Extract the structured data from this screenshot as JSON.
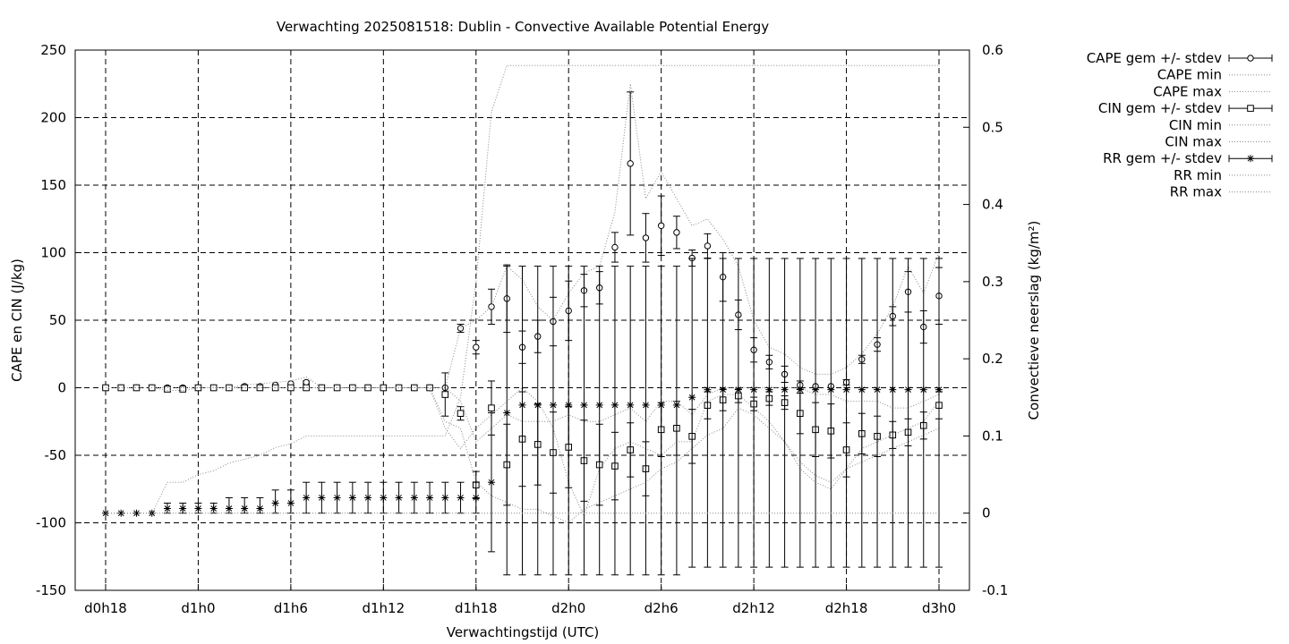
{
  "chart_data": {
    "type": "line",
    "title": "Verwachting 2025081518: Dublin - Convective Available Potential Energy",
    "xlabel": "Verwachtingstijd (UTC)",
    "ylabel": "CAPE en CIN (J/kg)",
    "y2label": "Convectieve neerslag (kg/m²)",
    "xlim": [
      0,
      54
    ],
    "ylim": [
      -150,
      250
    ],
    "y2lim": [
      -0.1,
      0.6
    ],
    "grid": true,
    "legend_position": "top-right outside",
    "xticks": [
      {
        "x": 0,
        "label": "d0h18"
      },
      {
        "x": 6,
        "label": "d1h0"
      },
      {
        "x": 12,
        "label": "d1h6"
      },
      {
        "x": 18,
        "label": "d1h12"
      },
      {
        "x": 24,
        "label": "d1h18"
      },
      {
        "x": 30,
        "label": "d2h0"
      },
      {
        "x": 36,
        "label": "d2h6"
      },
      {
        "x": 42,
        "label": "d2h12"
      },
      {
        "x": 48,
        "label": "d2h18"
      },
      {
        "x": 54,
        "label": "d3h0"
      }
    ],
    "yticks": [
      -150,
      -100,
      -50,
      0,
      50,
      100,
      150,
      200,
      250
    ],
    "y2ticks": [
      -0.1,
      0,
      0.1,
      0.2,
      0.3,
      0.4,
      0.5,
      0.6
    ],
    "x": [
      0,
      1,
      2,
      3,
      4,
      5,
      6,
      7,
      8,
      9,
      10,
      11,
      12,
      13,
      14,
      15,
      16,
      17,
      18,
      19,
      20,
      21,
      22,
      23,
      24,
      25,
      26,
      27,
      28,
      29,
      30,
      31,
      32,
      33,
      34,
      35,
      36,
      37,
      38,
      39,
      40,
      41,
      42,
      43,
      44,
      45,
      46,
      47,
      48,
      49,
      50,
      51,
      52,
      53,
      54
    ],
    "series": [
      {
        "name": "CAPE gem +/- stdev",
        "axis": "y1",
        "marker": "circle",
        "mean": [
          0,
          0,
          0,
          0,
          0,
          0,
          0,
          0,
          0,
          1,
          1,
          2,
          3,
          4,
          0,
          0,
          0,
          0,
          0,
          0,
          0,
          0,
          0,
          44,
          30,
          60,
          66,
          30,
          38,
          49,
          57,
          72,
          74,
          104,
          166,
          111,
          120,
          115,
          96,
          105,
          82,
          54,
          28,
          19,
          10,
          2,
          1,
          1,
          4,
          21,
          32,
          53,
          71,
          45,
          68
        ],
        "stdev": [
          0,
          0,
          0,
          0,
          0,
          0,
          0,
          0,
          0,
          0,
          0,
          0,
          0,
          1,
          0,
          0,
          0,
          0,
          0,
          0,
          0,
          0,
          0,
          3,
          5,
          13,
          25,
          12,
          12,
          18,
          22,
          12,
          12,
          11,
          53,
          18,
          22,
          12,
          6,
          9,
          18,
          11,
          9,
          5,
          6,
          3,
          0,
          0,
          2,
          3,
          5,
          7,
          15,
          12,
          21
        ]
      },
      {
        "name": "CAPE min",
        "axis": "y1",
        "values": [
          0,
          0,
          0,
          0,
          0,
          0,
          0,
          0,
          0,
          0,
          0,
          0,
          0,
          0,
          0,
          0,
          0,
          0,
          0,
          0,
          0,
          0,
          -30,
          -45,
          -30,
          -20,
          -10,
          0,
          -10,
          -30,
          -70,
          -95,
          -60,
          -45,
          -40,
          -45,
          -50,
          -40,
          -40,
          -10,
          -5,
          -5,
          -15,
          -25,
          -40,
          -60,
          -70,
          -75,
          -60,
          -45,
          -40,
          -35,
          -30,
          -25,
          -10
        ]
      },
      {
        "name": "CAPE max",
        "axis": "y1",
        "values": [
          0,
          0,
          0,
          0,
          0,
          0,
          0,
          0,
          0,
          2,
          3,
          4,
          5,
          8,
          0,
          0,
          0,
          0,
          0,
          0,
          0,
          0,
          0,
          44,
          50,
          60,
          90,
          80,
          60,
          50,
          70,
          85,
          90,
          130,
          225,
          140,
          160,
          140,
          120,
          125,
          110,
          90,
          50,
          30,
          25,
          15,
          10,
          10,
          15,
          25,
          40,
          60,
          90,
          70,
          100
        ]
      },
      {
        "name": "CIN gem +/- stdev",
        "axis": "y1",
        "marker": "square",
        "mean": [
          0,
          0,
          0,
          0,
          -1,
          -1,
          0,
          0,
          0,
          0,
          0,
          0,
          0,
          0,
          0,
          0,
          0,
          0,
          0,
          0,
          0,
          0,
          -5,
          -19,
          -72,
          -15,
          -57,
          -38,
          -42,
          -48,
          -44,
          -54,
          -57,
          -58,
          -46,
          -60,
          -31,
          -30,
          -36,
          -13,
          -9,
          -6,
          -12,
          -8,
          -11,
          -19,
          -31,
          -32,
          -46,
          -34,
          -36,
          -35,
          -33,
          -28,
          -13
        ],
        "stdev": [
          0,
          0,
          0,
          0,
          2,
          1,
          0,
          0,
          0,
          0,
          0,
          0,
          0,
          0,
          0,
          0,
          0,
          0,
          0,
          0,
          0,
          0,
          16,
          5,
          10,
          20,
          30,
          35,
          30,
          30,
          30,
          30,
          30,
          25,
          20,
          20,
          20,
          20,
          20,
          10,
          8,
          5,
          5,
          5,
          5,
          15,
          20,
          20,
          20,
          15,
          15,
          10,
          10,
          10,
          10
        ]
      },
      {
        "name": "CIN min",
        "axis": "y1",
        "values": [
          0,
          0,
          0,
          0,
          -2,
          -2,
          0,
          0,
          0,
          0,
          0,
          0,
          0,
          0,
          0,
          0,
          0,
          0,
          0,
          0,
          0,
          0,
          -25,
          -30,
          -70,
          -80,
          -85,
          -90,
          -90,
          -95,
          -100,
          -90,
          -85,
          -80,
          -75,
          -70,
          -60,
          -55,
          -45,
          -35,
          -30,
          -15,
          -20,
          -30,
          -40,
          -55,
          -65,
          -70,
          -60,
          -55,
          -50,
          -45,
          -40,
          -35,
          -30
        ]
      },
      {
        "name": "CIN max",
        "axis": "y1",
        "values": [
          0,
          0,
          0,
          0,
          0,
          0,
          0,
          0,
          0,
          0,
          0,
          0,
          0,
          0,
          0,
          0,
          0,
          0,
          0,
          0,
          0,
          0,
          0,
          -10,
          -40,
          -30,
          -20,
          -25,
          -25,
          -25,
          -20,
          -25,
          -25,
          -20,
          -15,
          -25,
          -10,
          -10,
          -20,
          -5,
          0,
          0,
          0,
          0,
          0,
          0,
          -5,
          -5,
          -10,
          -10,
          -10,
          -15,
          -15,
          -10,
          -5
        ]
      },
      {
        "name": "RR gem +/- stdev",
        "axis": "y2",
        "marker": "star",
        "mean": [
          0,
          0,
          0,
          0,
          0.006,
          0.006,
          0.006,
          0.006,
          0.006,
          0.006,
          0.006,
          0.013,
          0.013,
          0.02,
          0.02,
          0.02,
          0.02,
          0.02,
          0.02,
          0.02,
          0.02,
          0.02,
          0.02,
          0.02,
          0.02,
          0.04,
          0.13,
          0.14,
          0.14,
          0.14,
          0.14,
          0.14,
          0.14,
          0.14,
          0.14,
          0.14,
          0.14,
          0.14,
          0.15,
          0.16,
          0.16,
          0.16,
          0.16,
          0.16,
          0.16,
          0.16,
          0.16,
          0.16,
          0.16,
          0.16,
          0.16,
          0.16,
          0.16,
          0.16,
          0.16
        ],
        "lower": [
          0,
          0,
          0,
          0,
          0,
          0,
          0,
          0,
          0,
          0,
          0,
          0,
          0,
          0,
          0,
          0,
          0,
          0,
          0,
          0,
          0,
          0,
          0,
          0,
          0,
          -0.05,
          -0.08,
          -0.08,
          -0.08,
          -0.08,
          -0.08,
          -0.08,
          -0.08,
          -0.08,
          -0.08,
          -0.08,
          -0.08,
          -0.08,
          -0.07,
          -0.07,
          -0.07,
          -0.07,
          -0.07,
          -0.07,
          -0.07,
          -0.07,
          -0.07,
          -0.07,
          -0.07,
          -0.07,
          -0.07,
          -0.07,
          -0.07,
          -0.07,
          -0.07
        ],
        "upper": [
          0,
          0,
          0,
          0,
          0.013,
          0.013,
          0.013,
          0.013,
          0.02,
          0.02,
          0.02,
          0.03,
          0.03,
          0.04,
          0.04,
          0.04,
          0.04,
          0.04,
          0.04,
          0.04,
          0.04,
          0.04,
          0.04,
          0.04,
          0.04,
          0.13,
          0.32,
          0.32,
          0.32,
          0.32,
          0.32,
          0.32,
          0.32,
          0.32,
          0.32,
          0.32,
          0.32,
          0.32,
          0.33,
          0.33,
          0.33,
          0.33,
          0.33,
          0.33,
          0.33,
          0.33,
          0.33,
          0.33,
          0.33,
          0.33,
          0.33,
          0.33,
          0.33,
          0.33,
          0.33
        ]
      },
      {
        "name": "RR min",
        "axis": "y2",
        "values": [
          0,
          0,
          0,
          0,
          0,
          0,
          0,
          0,
          0,
          0,
          0,
          0,
          0,
          0,
          0,
          0,
          0,
          0,
          0,
          0,
          0,
          0,
          0,
          0,
          0,
          0,
          0,
          0,
          0,
          0,
          0,
          0,
          0,
          0,
          0,
          0,
          0,
          0,
          0,
          0,
          0,
          0,
          0,
          0,
          0,
          0,
          0,
          0,
          0,
          0,
          0,
          0,
          0,
          0,
          0
        ]
      },
      {
        "name": "RR max",
        "axis": "y2",
        "values": [
          0,
          0,
          0,
          0,
          0.04,
          0.04,
          0.05,
          0.055,
          0.065,
          0.07,
          0.075,
          0.085,
          0.09,
          0.1,
          0.1,
          0.1,
          0.1,
          0.1,
          0.1,
          0.1,
          0.1,
          0.1,
          0.1,
          0.15,
          0.3,
          0.52,
          0.58,
          0.58,
          0.58,
          0.58,
          0.58,
          0.58,
          0.58,
          0.58,
          0.58,
          0.58,
          0.58,
          0.58,
          0.58,
          0.58,
          0.58,
          0.58,
          0.58,
          0.58,
          0.58,
          0.58,
          0.58,
          0.58,
          0.58,
          0.58,
          0.58,
          0.58,
          0.58,
          0.58,
          0.58
        ]
      }
    ]
  }
}
